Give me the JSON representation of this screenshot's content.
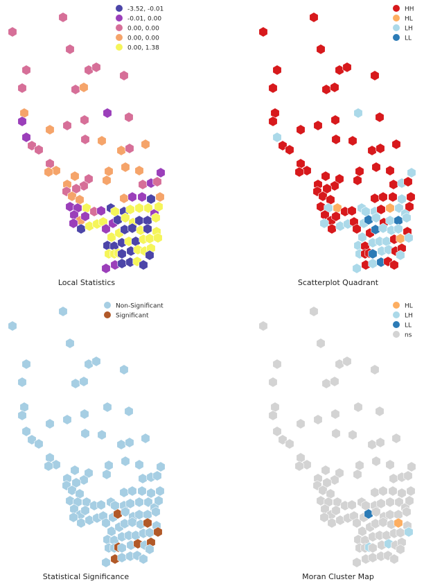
{
  "panels": [
    {
      "id": "local-statistics",
      "title": "Local Statistics",
      "legend": [
        {
          "label": "-3.52, -0.01",
          "color": "#4c45a8"
        },
        {
          "label": "-0.01,  0.00",
          "color": "#9b3fba"
        },
        {
          "label": " 0.00,  0.00",
          "color": "#d66f98"
        },
        {
          "label": " 0.00,  0.00",
          "color": "#f5a46a"
        },
        {
          "label": " 0.00,  1.38",
          "color": "#f5f55a"
        }
      ]
    },
    {
      "id": "scatterplot-quadrant",
      "title": "Scatterplot Quadrant",
      "legend": [
        {
          "label": "HH",
          "color": "#d7191c"
        },
        {
          "label": "HL",
          "color": "#fdae61"
        },
        {
          "label": "LH",
          "color": "#abd9e9"
        },
        {
          "label": "LL",
          "color": "#2c7bb6"
        }
      ]
    },
    {
      "id": "statistical-significance",
      "title": "Statistical Significance",
      "legend": [
        {
          "label": "Non-Significant",
          "color": "#a6cee3"
        },
        {
          "label": "Significant",
          "color": "#b15928"
        }
      ]
    },
    {
      "id": "moran-cluster-map",
      "title": "Moran Cluster Map",
      "legend": [
        {
          "label": "HL",
          "color": "#fdae61"
        },
        {
          "label": "LH",
          "color": "#abd9e9"
        },
        {
          "label": "LL",
          "color": "#2c7bb6"
        },
        {
          "label": "ns",
          "color": "#d3d3d3"
        }
      ]
    }
  ]
}
